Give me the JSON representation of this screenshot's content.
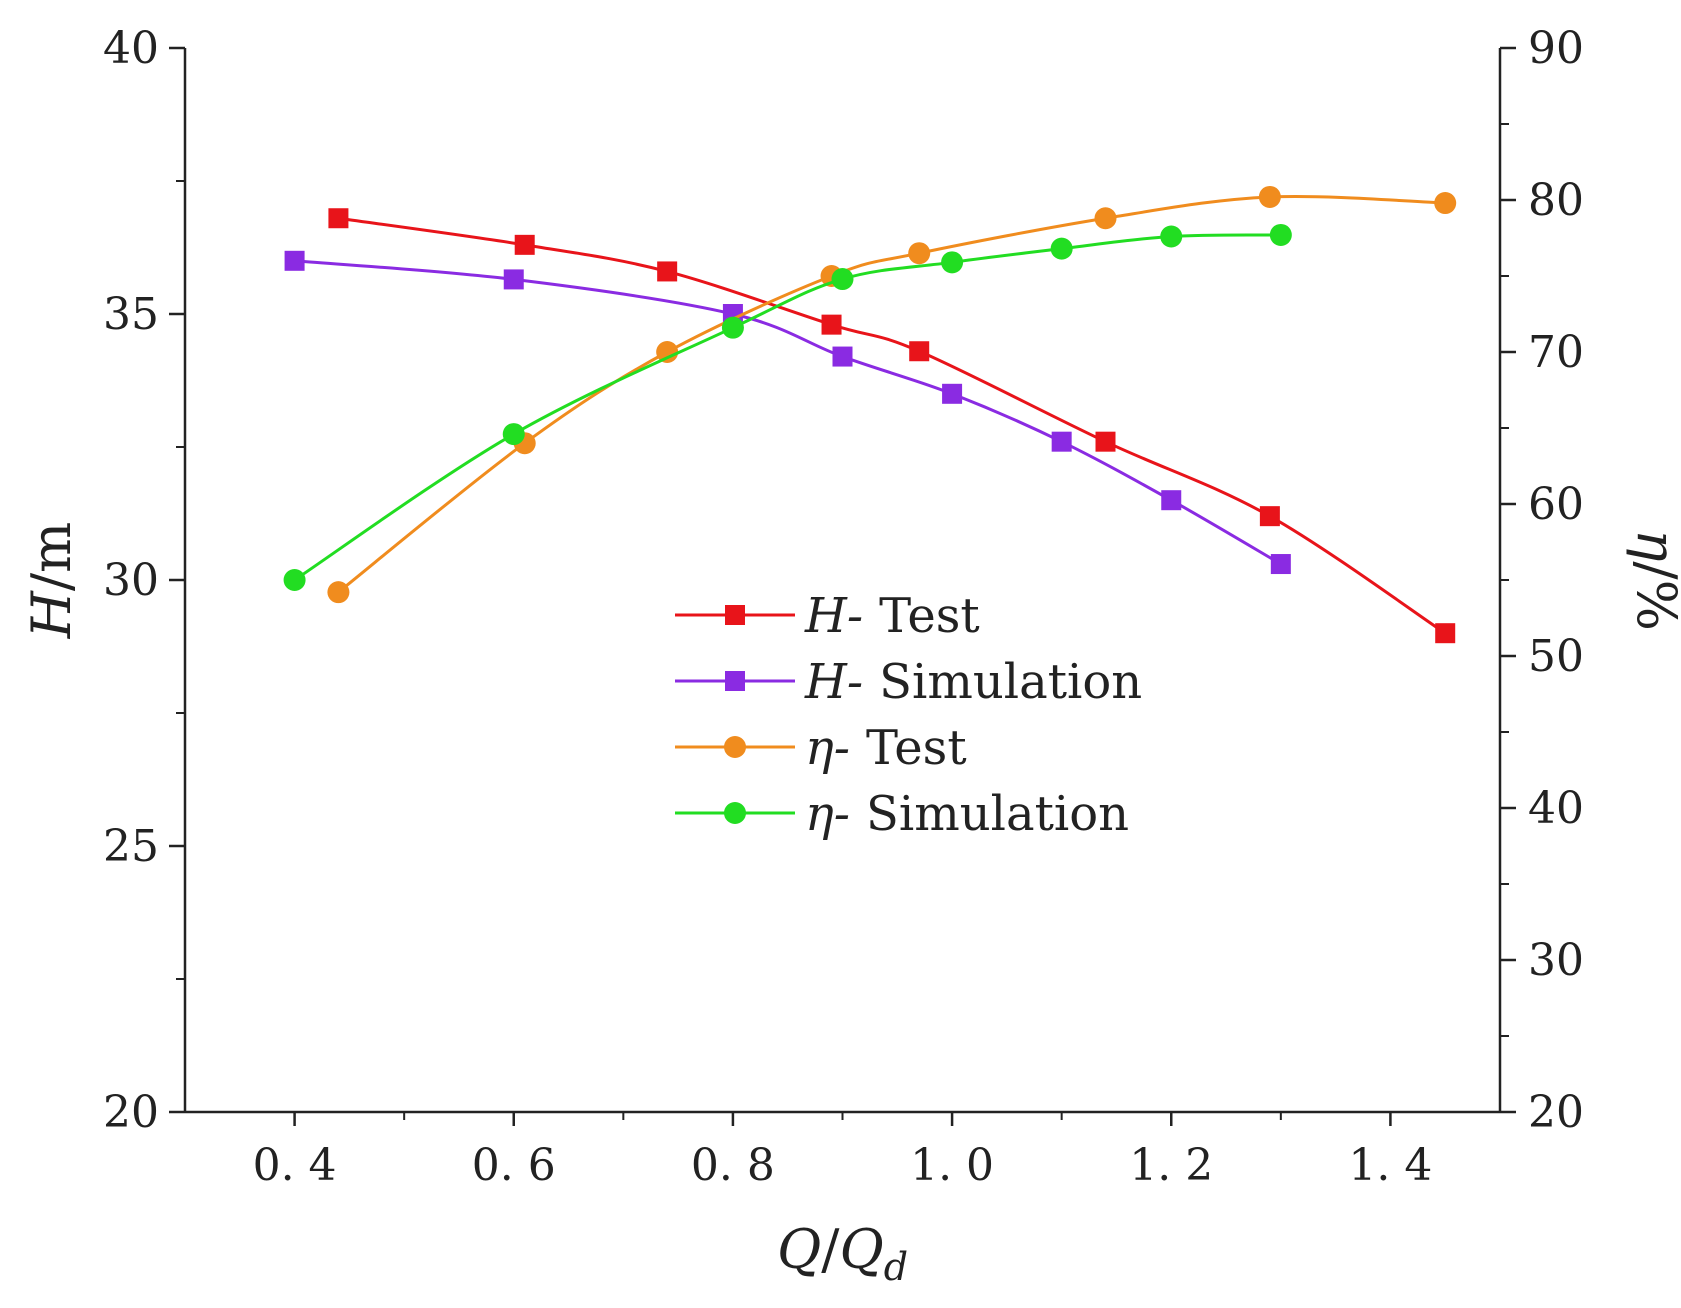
{
  "chart_data": {
    "type": "line",
    "x_axis": {
      "label_main": "Q",
      "label_sep": "/",
      "label_sub_base": "Q",
      "label_sub": "d",
      "range": [
        0.3,
        1.5
      ],
      "ticks": [
        0.4,
        0.6,
        0.8,
        1.0,
        1.2,
        1.4
      ],
      "tick_labels": [
        "0. 4",
        "0. 6",
        "0. 8",
        "1. 0",
        "1. 2",
        "1. 4"
      ]
    },
    "y_left": {
      "label_main": "H",
      "label_unit": "/m",
      "range": [
        20,
        40
      ],
      "ticks": [
        20,
        25,
        30,
        35,
        40
      ],
      "tick_labels": [
        "20",
        "25",
        "30",
        "35",
        "40"
      ]
    },
    "y_right": {
      "label_main": "η",
      "label_unit": "/%",
      "range": [
        20,
        90
      ],
      "ticks": [
        20,
        30,
        40,
        50,
        60,
        70,
        80,
        90
      ],
      "tick_labels": [
        "20",
        "30",
        "40",
        "50",
        "60",
        "70",
        "80",
        "90"
      ]
    },
    "grid": false,
    "legend_position": "center",
    "series": [
      {
        "name_symbol": "H-",
        "name_text": "Test",
        "axis": "left",
        "marker": "square",
        "color": "#e8141a",
        "x": [
          0.44,
          0.61,
          0.74,
          0.89,
          0.97,
          1.14,
          1.29,
          1.45
        ],
        "y": [
          36.8,
          36.3,
          35.8,
          34.8,
          34.3,
          32.6,
          31.2,
          29.0
        ]
      },
      {
        "name_symbol": "H-",
        "name_text": "Simulation",
        "axis": "left",
        "marker": "square",
        "color": "#8a2be2",
        "x": [
          0.4,
          0.6,
          0.8,
          0.9,
          1.0,
          1.1,
          1.2,
          1.3
        ],
        "y": [
          36.0,
          35.65,
          35.0,
          34.2,
          33.5,
          32.6,
          31.5,
          30.3
        ]
      },
      {
        "name_symbol": "η-",
        "name_text": "Test",
        "axis": "right",
        "marker": "circle",
        "color": "#f08c1e",
        "x": [
          0.44,
          0.61,
          0.74,
          0.89,
          0.97,
          1.14,
          1.29,
          1.45
        ],
        "y": [
          54.2,
          64.0,
          70.0,
          75.0,
          76.5,
          78.8,
          80.2,
          79.8
        ]
      },
      {
        "name_symbol": "η-",
        "name_text": "Simulation",
        "axis": "right",
        "marker": "circle",
        "color": "#22dd22",
        "x": [
          0.4,
          0.6,
          0.8,
          0.9,
          1.0,
          1.1,
          1.2,
          1.3
        ],
        "y": [
          55.0,
          64.6,
          71.6,
          74.8,
          75.9,
          76.8,
          77.6,
          77.7
        ]
      }
    ]
  }
}
